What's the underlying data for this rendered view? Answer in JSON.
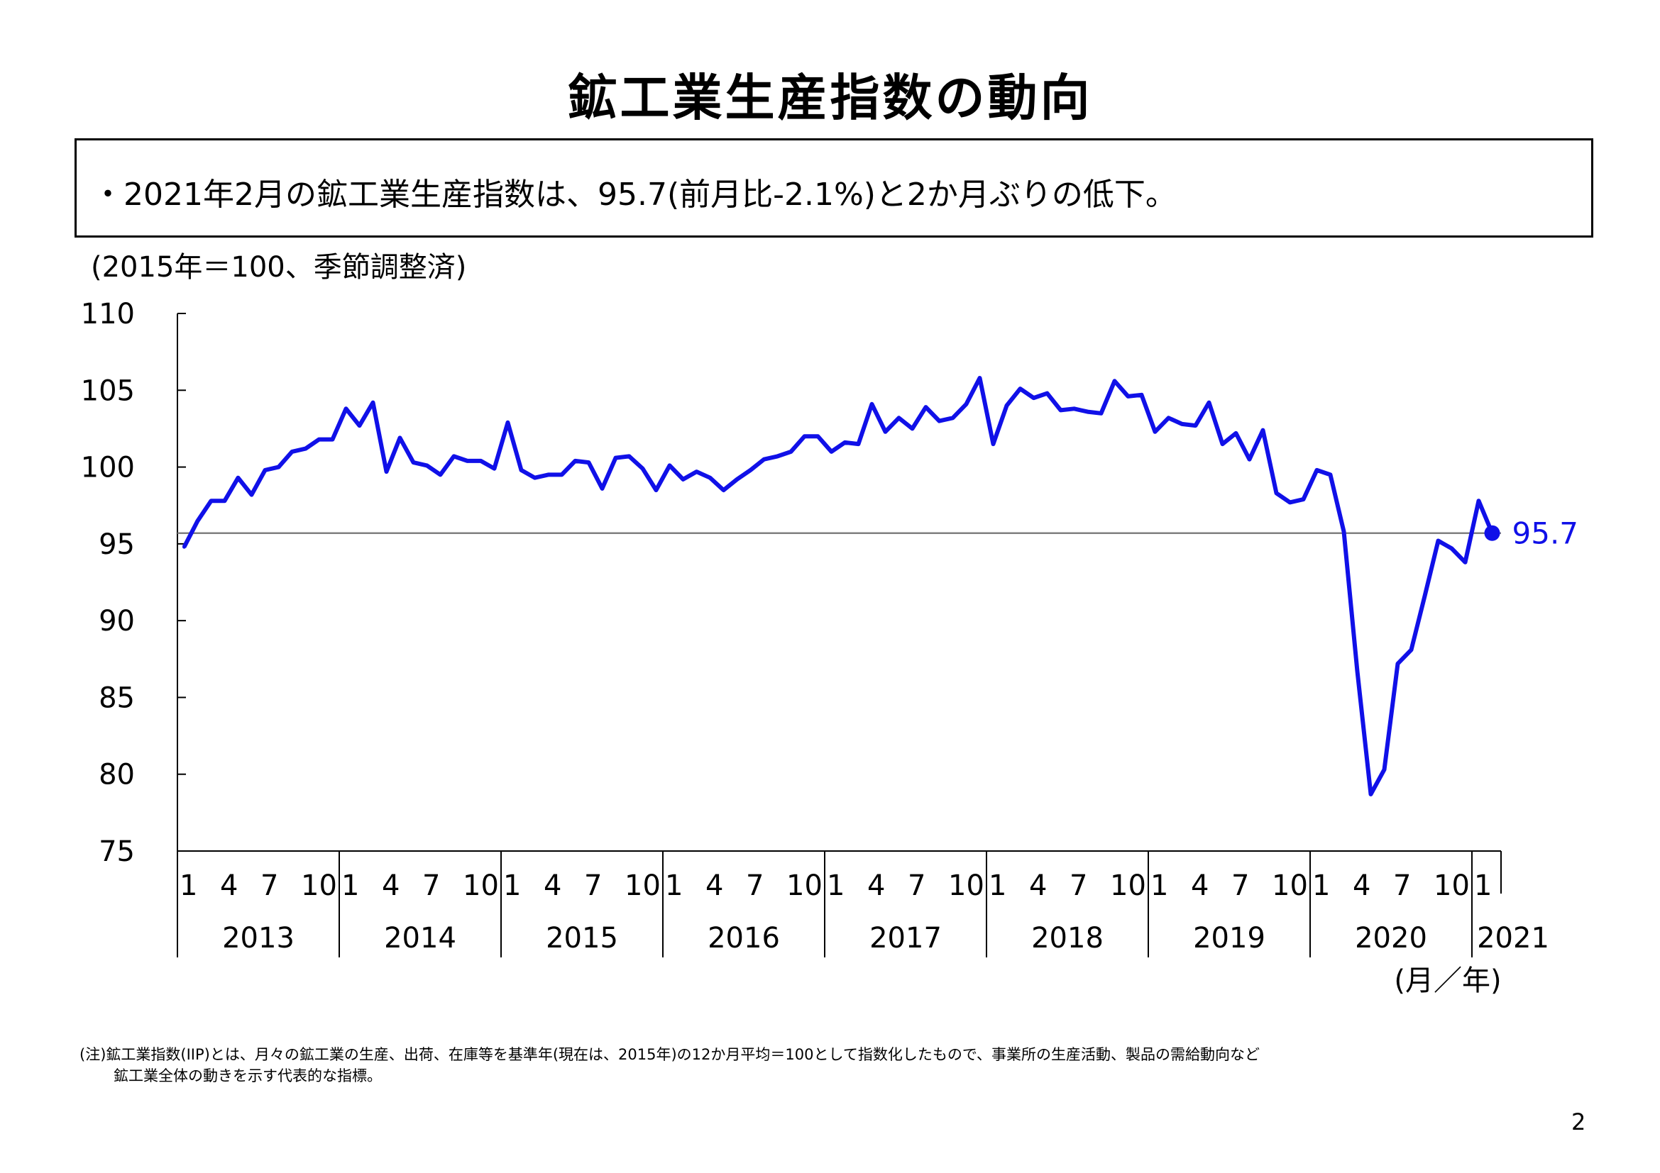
{
  "page": {
    "title": "鉱工業生産指数の動向",
    "summary": "・2021年2月の鉱工業生産指数は、95.7(前月比-2.1%)と2か月ぶりの低下。",
    "note_line1": "(注)鉱工業指数(IIP)とは、月々の鉱工業の生産、出荷、在庫等を基準年(現在は、2015年)の12か月平均＝100として指数化したもので、事業所の生産活動、製品の需給動向など",
    "note_line2": "鉱工業全体の動きを示す代表的な指標。",
    "page_number": "2"
  },
  "chart_data": {
    "type": "line",
    "unit_label": "(2015年＝100、季節調整済)",
    "x_axis_unit": "(月／年)",
    "ylim": [
      75,
      110
    ],
    "yticks": [
      75,
      80,
      85,
      90,
      95,
      100,
      105,
      110
    ],
    "month_ticks": [
      "1",
      "4",
      "7",
      "10"
    ],
    "years": [
      "2013",
      "2014",
      "2015",
      "2016",
      "2017",
      "2018",
      "2019",
      "2020",
      "2021"
    ],
    "reference_line": 95.7,
    "last_label": "95.7",
    "colors": {
      "line": "#1010e8",
      "reference": "#808080",
      "axis": "#000000"
    },
    "series": [
      {
        "start": "2013-01",
        "values": [
          94.8,
          96.5,
          97.8,
          97.8,
          99.3,
          98.2,
          99.8,
          100.0,
          101.0,
          101.2,
          101.8,
          101.8,
          103.8,
          102.7,
          104.2,
          99.7,
          101.9,
          100.3,
          100.1,
          99.5,
          100.7,
          100.4,
          100.4,
          99.9,
          102.9,
          99.8,
          99.3,
          99.5,
          99.5,
          100.4,
          100.3,
          98.6,
          100.6,
          100.7,
          99.9,
          98.5,
          100.1,
          99.2,
          99.7,
          99.3,
          98.5,
          99.2,
          99.8,
          100.5,
          100.7,
          101.0,
          102.0,
          102.0,
          101.0,
          101.6,
          101.5,
          104.1,
          102.3,
          103.2,
          102.5,
          103.9,
          103.0,
          103.2,
          104.1,
          105.8,
          101.5,
          104.0,
          105.1,
          104.5,
          104.8,
          103.7,
          103.8,
          103.6,
          103.5,
          105.6,
          104.6,
          104.7,
          102.3,
          103.2,
          102.8,
          102.7,
          104.2,
          101.5,
          102.2,
          100.5,
          102.4,
          98.3,
          97.7,
          97.9,
          99.8,
          99.5,
          95.8,
          86.7,
          78.7,
          80.3,
          87.2,
          88.1,
          91.6,
          95.2,
          94.7,
          93.8,
          97.8,
          95.7
        ]
      }
    ]
  }
}
